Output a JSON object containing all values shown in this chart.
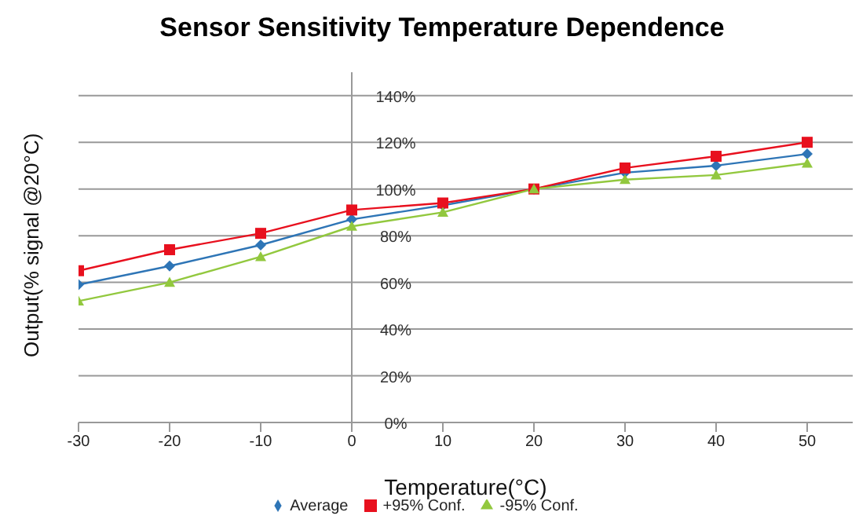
{
  "chart_data": {
    "type": "line",
    "title": "Sensor Sensitivity Temperature Dependence",
    "xlabel": "Temperature(°C)",
    "ylabel": "Output(% signal @20°C)",
    "x": [
      -30,
      -20,
      -10,
      0,
      10,
      20,
      30,
      40,
      50
    ],
    "series": [
      {
        "name": "Average",
        "color": "#2e75b6",
        "marker": "diamond",
        "values": [
          59,
          67,
          76,
          87,
          93,
          100,
          107,
          110,
          115
        ]
      },
      {
        "name": "+95% Conf.",
        "color": "#e8101e",
        "marker": "square",
        "values": [
          65,
          74,
          81,
          91,
          94,
          100,
          109,
          114,
          120
        ]
      },
      {
        "name": "-95% Conf.",
        "color": "#92c83e",
        "marker": "triangle",
        "values": [
          52,
          60,
          71,
          84,
          90,
          100,
          104,
          106,
          111
        ]
      }
    ],
    "xlim": [
      -30,
      55
    ],
    "xticks": [
      -30,
      -20,
      -10,
      0,
      10,
      20,
      30,
      40,
      50
    ],
    "ylim": [
      0,
      150
    ],
    "yticks": [
      {
        "value": 0,
        "label": "0%"
      },
      {
        "value": 20,
        "label": "20%"
      },
      {
        "value": 40,
        "label": "40%"
      },
      {
        "value": 60,
        "label": "60%"
      },
      {
        "value": 80,
        "label": "80%"
      },
      {
        "value": 100,
        "label": "100%"
      },
      {
        "value": 120,
        "label": "120%"
      },
      {
        "value": 140,
        "label": "140%"
      }
    ],
    "grid": "y",
    "legend": "bottom",
    "line_style": "solid"
  }
}
